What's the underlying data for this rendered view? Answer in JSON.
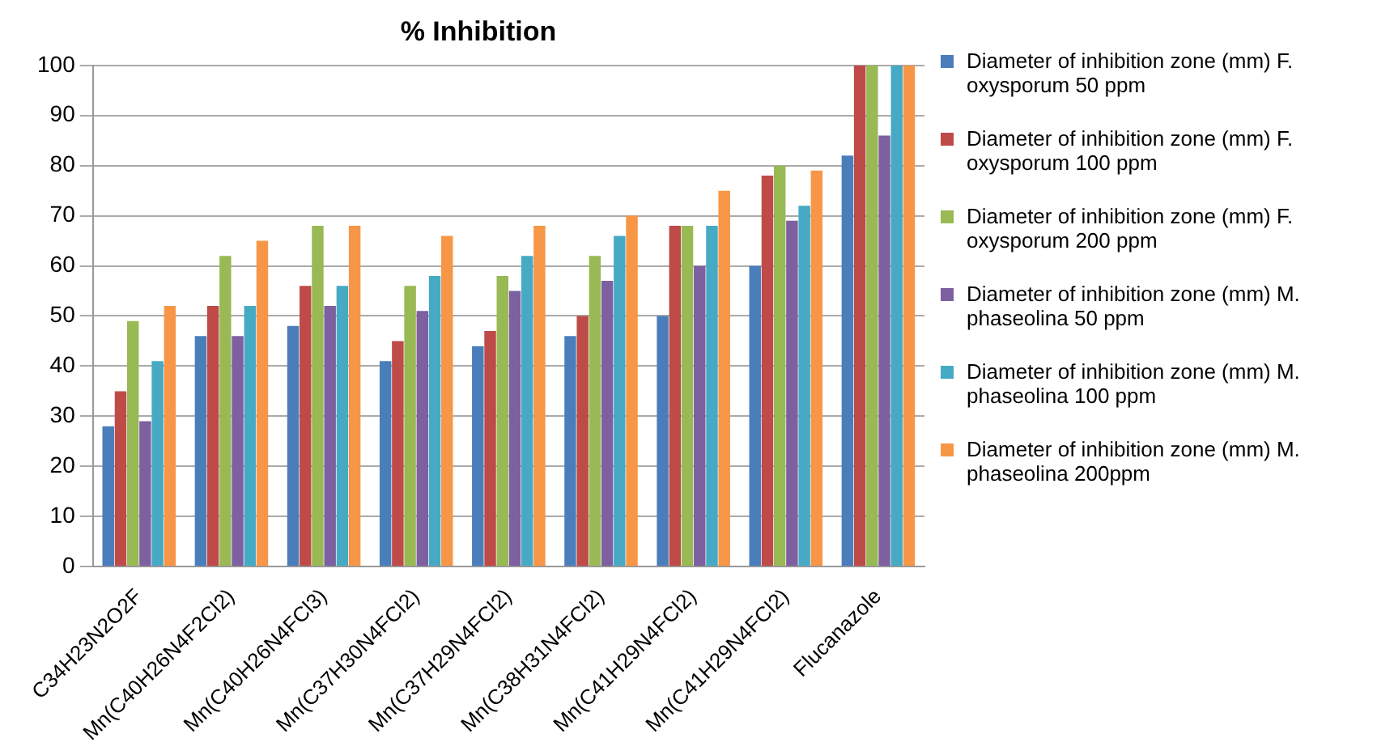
{
  "chart_data": {
    "type": "bar",
    "title": "% Inhibition",
    "categories": [
      "C34H23N2O2F",
      "Mn(C40H26N4F2Cl2)",
      "Mn(C40H26N4FCl3)",
      "Mn(C37H30N4FCl2)",
      "Mn(C37H29N4FCl2)",
      "Mn(C38H31N4FCl2)",
      "Mn(C41H29N4FCl2)",
      "Mn(C41H29N4FCl2)",
      "Flucanazole"
    ],
    "series": [
      {
        "name": "Diameter of inhibition zone (mm) F. oxysporum 50 ppm",
        "color": "#4a7ebb",
        "values": [
          28,
          46,
          48,
          41,
          44,
          46,
          50,
          60,
          82
        ]
      },
      {
        "name": "Diameter of inhibition zone (mm) F. oxysporum 100 ppm",
        "color": "#be4b48",
        "values": [
          35,
          52,
          56,
          45,
          47,
          50,
          68,
          78,
          100
        ]
      },
      {
        "name": "Diameter of inhibition zone (mm) F. oxysporum 200 ppm",
        "color": "#98b954",
        "values": [
          49,
          62,
          68,
          56,
          58,
          62,
          68,
          80,
          100
        ]
      },
      {
        "name": "Diameter of inhibition zone (mm) M. phaseolina 50 ppm",
        "color": "#7d60a0",
        "values": [
          29,
          46,
          52,
          51,
          55,
          57,
          60,
          69,
          86
        ]
      },
      {
        "name": "Diameter of inhibition zone (mm) M. phaseolina 100 ppm",
        "color": "#46aac5",
        "values": [
          41,
          52,
          56,
          58,
          62,
          66,
          68,
          72,
          100
        ]
      },
      {
        "name": "Diameter of inhibition zone (mm) M. phaseolina 200ppm",
        "color": "#f79646",
        "values": [
          52,
          65,
          68,
          66,
          68,
          70,
          75,
          79,
          100
        ]
      }
    ],
    "ylim": [
      0,
      100
    ],
    "yticks": [
      0,
      10,
      20,
      30,
      40,
      50,
      60,
      70,
      80,
      90,
      100
    ],
    "grid": "y",
    "legend": "right"
  }
}
